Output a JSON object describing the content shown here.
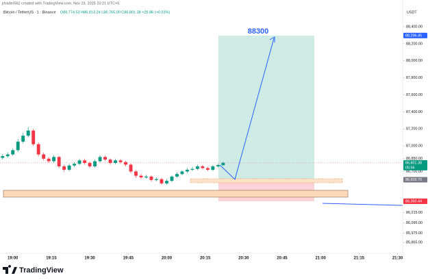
{
  "header": {
    "author": "jrtrader562 created with TradingView.com, Nov 23, 2025 20:21 UTC+5",
    "symbol": "Bitcoin / TetherUS · 1 · Binance",
    "ohlc": "O86,774.53 H86,813.24 L86,765.00 C86,801.38 +26.86 (+0.03%)"
  },
  "footer": {
    "brand": "TradingView"
  },
  "chart_data": {
    "type": "candlestick",
    "currency": "USDT",
    "annotation": "88300",
    "x": [
      "18:56",
      "18:58",
      "19:00",
      "19:02",
      "19:04",
      "19:06",
      "19:08",
      "19:10",
      "19:12",
      "19:14",
      "19:16",
      "19:18",
      "19:20",
      "19:22",
      "19:24",
      "19:26",
      "19:28",
      "19:30",
      "19:32",
      "19:34",
      "19:36",
      "19:38",
      "19:40",
      "19:42",
      "19:44",
      "19:46",
      "19:48",
      "19:50",
      "19:52",
      "19:54",
      "19:56",
      "19:58",
      "20:00",
      "20:02",
      "20:04",
      "20:06",
      "20:08",
      "20:10",
      "20:12",
      "20:14",
      "20:16",
      "20:18",
      "20:20",
      "20:22"
    ],
    "open": [
      86860,
      86880,
      86900,
      86950,
      87050,
      87120,
      87180,
      87020,
      86900,
      86850,
      86820,
      86870,
      86760,
      86720,
      86770,
      86790,
      86830,
      86800,
      86760,
      86820,
      86870,
      86840,
      86800,
      86830,
      86810,
      86780,
      86700,
      86650,
      86630,
      86640,
      86600,
      86610,
      86560,
      86590,
      86640,
      86670,
      86700,
      86720,
      86730,
      86760,
      86740,
      86720,
      86760,
      86774.53
    ],
    "high": [
      86905,
      86925,
      86970,
      87080,
      87150,
      87220,
      87200,
      87040,
      86920,
      86870,
      86890,
      86885,
      86780,
      86790,
      86810,
      86850,
      86850,
      86815,
      86840,
      86890,
      86885,
      86855,
      86850,
      86845,
      86825,
      86795,
      86715,
      86670,
      86660,
      86655,
      86630,
      86625,
      86610,
      86655,
      86690,
      86715,
      86740,
      86750,
      86780,
      86775,
      86755,
      86775,
      86790,
      86813.24
    ],
    "low": [
      86840,
      86860,
      86885,
      86930,
      87030,
      87100,
      87000,
      86880,
      86830,
      86800,
      86800,
      86740,
      86700,
      86705,
      86750,
      86775,
      86780,
      86740,
      86745,
      86805,
      86820,
      86780,
      86785,
      86790,
      86760,
      86680,
      86625,
      86610,
      86615,
      86580,
      86585,
      86545,
      86545,
      86575,
      86625,
      86655,
      86685,
      86705,
      86715,
      86725,
      86705,
      86705,
      86745,
      86765
    ],
    "close": [
      86880,
      86900,
      86950,
      87050,
      87120,
      87180,
      87020,
      86900,
      86850,
      86820,
      86870,
      86760,
      86720,
      86770,
      86790,
      86830,
      86800,
      86760,
      86820,
      86870,
      86840,
      86800,
      86830,
      86810,
      86780,
      86700,
      86650,
      86630,
      86640,
      86600,
      86610,
      86560,
      86590,
      86640,
      86670,
      86700,
      86720,
      86730,
      86760,
      86740,
      86720,
      86760,
      86774.53,
      86801.38
    ],
    "up_color": "#089981",
    "down_color": "#f23645",
    "xlim": [
      "18:55",
      "21:32"
    ],
    "xticks": [
      "19:00",
      "19:15",
      "19:30",
      "19:45",
      "20:00",
      "20:15",
      "20:30",
      "20:45",
      "21:00",
      "21:15",
      "21:30"
    ],
    "ylim": [
      85755,
      88553
    ],
    "yticks": [
      {
        "value": 88400,
        "label": "88,400.00"
      },
      {
        "value": 88200,
        "label": "88,200.00"
      },
      {
        "value": 88000,
        "label": "88,000.00"
      },
      {
        "value": 87800,
        "label": "87,800.00"
      },
      {
        "value": 87600,
        "label": "87,600.00"
      },
      {
        "value": 87400,
        "label": "87,400.00"
      },
      {
        "value": 87200,
        "label": "87,200.00"
      },
      {
        "value": 87000,
        "label": "87,000.00"
      },
      {
        "value": 86850,
        "label": "86,850.00"
      },
      {
        "value": 86700,
        "label": "86,700.00"
      },
      {
        "value": 86215,
        "label": "86,215.00"
      },
      {
        "value": 86095,
        "label": "86,095.00"
      },
      {
        "value": 85975,
        "label": "85,975.00"
      },
      {
        "value": 85865,
        "label": "85,865.00"
      }
    ],
    "position": {
      "target": {
        "value": 88296.45,
        "label": "88,296.45"
      },
      "entry": {
        "value": 86603.7,
        "label": "86,603.70"
      },
      "stop": {
        "value": 86350.44,
        "label": "86,350.44"
      }
    },
    "last_price": {
      "value": 86801.38,
      "label": "86,801.38",
      "countdown": "05:56"
    }
  }
}
